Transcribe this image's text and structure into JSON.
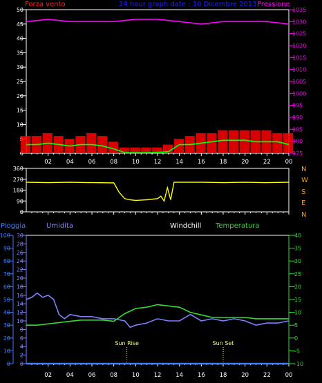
{
  "header": {
    "left_label": "Forza vento",
    "center_label": "24 hour graph date : 10 Dicembre 2013",
    "right_label": "Pressione"
  },
  "colors": {
    "background": "#000000",
    "axis": "#ffffff",
    "wind": "#ff2020",
    "gust": "#ff0000",
    "avg_wind": "#00ff00",
    "pressure": "#ff00ff",
    "direction": "#ffff00",
    "humidity": "#8080ff",
    "rain": "#3d7fff",
    "temperature": "#33dd33",
    "windchill": "#ffffff",
    "sun_marker": "#ffff66",
    "title": "#2222ff",
    "compass": "#ff9900"
  },
  "compass": [
    "N",
    "W",
    "S",
    "E",
    "N"
  ],
  "legend_bottom": {
    "rain": "Pioggia",
    "humidity": "Umidita",
    "windchill": "Windchill",
    "temperature": "Temperatura"
  },
  "sun": {
    "rise_label": "Sun Rise",
    "set_label": "Sun Set",
    "rise_hour": 9.2,
    "set_hour": 18.0
  },
  "chart_data": [
    {
      "type": "line",
      "name": "wind",
      "x_ticks": [
        "02",
        "04",
        "06",
        "08",
        "10",
        "12",
        "14",
        "16",
        "18",
        "20",
        "22",
        "00"
      ],
      "ylim_left": [
        0,
        50
      ],
      "yticks_left": [
        0,
        5,
        10,
        15,
        20,
        25,
        30,
        35,
        40,
        45,
        50
      ],
      "ylim_right": [
        975,
        1035
      ],
      "yticks_right": [
        975,
        980,
        985,
        990,
        995,
        1000,
        1005,
        1010,
        1015,
        1020,
        1025,
        1030,
        1035
      ],
      "series": [
        {
          "name": "gust",
          "hours": [
            0,
            1,
            2,
            3,
            4,
            5,
            6,
            7,
            8,
            9,
            10,
            11,
            12,
            13,
            14,
            15,
            16,
            17,
            18,
            19,
            20,
            21,
            22,
            23,
            24
          ],
          "values": [
            6,
            6,
            7,
            6,
            5,
            6,
            7,
            6,
            4,
            2,
            2,
            2,
            2,
            3,
            5,
            6,
            7,
            7,
            8,
            8,
            8,
            8,
            8,
            7,
            7
          ]
        },
        {
          "name": "avg_wind",
          "hours": [
            0,
            1,
            2,
            3,
            4,
            5,
            6,
            7,
            8,
            9,
            10,
            11,
            12,
            13,
            14,
            15,
            16,
            17,
            18,
            19,
            20,
            21,
            22,
            23,
            24
          ],
          "values": [
            3,
            3,
            3.5,
            3,
            2.5,
            3,
            3,
            2.5,
            1.5,
            0.2,
            0.2,
            0.2,
            0.3,
            0.5,
            3,
            3,
            3.5,
            4,
            4.5,
            4.5,
            4.5,
            4,
            4,
            4,
            3
          ]
        },
        {
          "name": "pressure",
          "hours": [
            0,
            2,
            4,
            6,
            8,
            10,
            12,
            14,
            16,
            18,
            20,
            22,
            24
          ],
          "values": [
            1030,
            1031,
            1030,
            1030,
            1030,
            1031,
            1031,
            1030,
            1029,
            1030,
            1030,
            1030,
            1029
          ]
        }
      ]
    },
    {
      "type": "line",
      "name": "wind_direction",
      "x_ticks": [
        "02",
        "04",
        "06",
        "08",
        "10",
        "12",
        "14",
        "16",
        "18",
        "20",
        "22",
        "00"
      ],
      "ylim": [
        0,
        360
      ],
      "yticks": [
        0,
        90,
        180,
        270,
        360
      ],
      "series": [
        {
          "name": "direction",
          "hours": [
            0,
            2,
            4,
            6,
            8,
            8.5,
            9,
            9.5,
            10,
            11,
            12,
            12.3,
            12.6,
            12.9,
            13.2,
            13.5,
            14,
            16,
            18,
            20,
            22,
            24
          ],
          "values": [
            245,
            242,
            245,
            242,
            240,
            160,
            110,
            100,
            95,
            100,
            110,
            130,
            90,
            200,
            100,
            245,
            245,
            245,
            242,
            245,
            242,
            245
          ]
        }
      ]
    },
    {
      "type": "line",
      "name": "humidity_temperature",
      "x_ticks": [
        "02",
        "04",
        "06",
        "08",
        "10",
        "12",
        "14",
        "16",
        "18",
        "20",
        "22",
        "00"
      ],
      "ylim_rain": [
        0,
        100
      ],
      "yticks_rain": [
        0,
        10,
        20,
        30,
        40,
        50,
        60,
        70,
        80,
        90,
        100
      ],
      "ylim_humidity": [
        0,
        30
      ],
      "yticks_humidity": [
        0,
        2,
        4,
        6,
        8,
        10,
        12,
        14,
        16,
        18,
        20,
        22,
        24,
        26,
        28,
        30
      ],
      "ylim_temp": [
        -10,
        40
      ],
      "yticks_temp": [
        -10,
        -5,
        0,
        5,
        10,
        15,
        20,
        25,
        30,
        35,
        40
      ],
      "series": [
        {
          "name": "humidity",
          "hours": [
            0,
            0.5,
            1,
            1.5,
            2,
            2.5,
            3,
            3.5,
            4,
            5,
            6,
            7,
            8,
            9,
            9.5,
            10,
            11,
            12,
            13,
            14,
            15,
            16,
            17,
            18,
            19,
            20,
            21,
            22,
            23,
            24
          ],
          "values": [
            15,
            15.5,
            16.5,
            15.5,
            16,
            15,
            11.5,
            10.5,
            11.5,
            11,
            11,
            10.5,
            10.5,
            10,
            8.5,
            9,
            9.5,
            10.5,
            10,
            10,
            11.5,
            10,
            10.5,
            10,
            10.5,
            10,
            9,
            9.5,
            9.5,
            10
          ]
        },
        {
          "name": "temperature",
          "hours": [
            0,
            1,
            2,
            3,
            4,
            5,
            6,
            7,
            8,
            9,
            10,
            11,
            12,
            13,
            14,
            15,
            16,
            17,
            18,
            19,
            20,
            21,
            22,
            23,
            24
          ],
          "values": [
            5,
            5,
            5.5,
            6,
            6.5,
            7,
            7,
            7,
            6.5,
            9.5,
            11.5,
            12,
            13,
            12.5,
            12,
            10,
            9,
            8,
            8,
            8,
            8,
            7.5,
            7.5,
            7.5,
            7.5
          ]
        },
        {
          "name": "rain",
          "hours": [
            0,
            24
          ],
          "values": [
            0,
            0
          ]
        }
      ]
    }
  ]
}
